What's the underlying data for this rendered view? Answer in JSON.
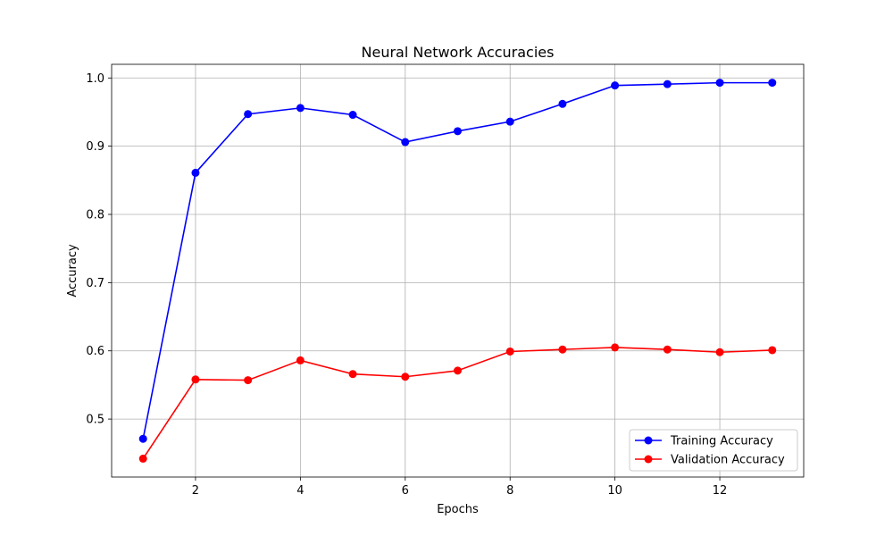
{
  "chart_data": {
    "type": "line",
    "title": "Neural Network Accuracies",
    "xlabel": "Epochs",
    "ylabel": "Accuracy",
    "x": [
      1,
      2,
      3,
      4,
      5,
      6,
      7,
      8,
      9,
      10,
      11,
      12,
      13
    ],
    "xlim": [
      0.4,
      13.6
    ],
    "ylim": [
      0.415,
      1.02
    ],
    "xticks": [
      "2",
      "4",
      "6",
      "8",
      "10",
      "12"
    ],
    "yticks": [
      "0.5",
      "0.6",
      "0.7",
      "0.8",
      "0.9",
      "1.0"
    ],
    "grid": true,
    "legend_position": "bottom-right",
    "series": [
      {
        "name": "Training Accuracy",
        "color": "#0000ff",
        "marker": "circle",
        "values": [
          0.471,
          0.861,
          0.947,
          0.956,
          0.946,
          0.906,
          0.922,
          0.936,
          0.962,
          0.989,
          0.991,
          0.993,
          0.993
        ]
      },
      {
        "name": "Validation Accuracy",
        "color": "#ff0000",
        "marker": "circle",
        "values": [
          0.442,
          0.558,
          0.557,
          0.586,
          0.566,
          0.562,
          0.571,
          0.599,
          0.602,
          0.605,
          0.602,
          0.598,
          0.601
        ]
      }
    ]
  }
}
